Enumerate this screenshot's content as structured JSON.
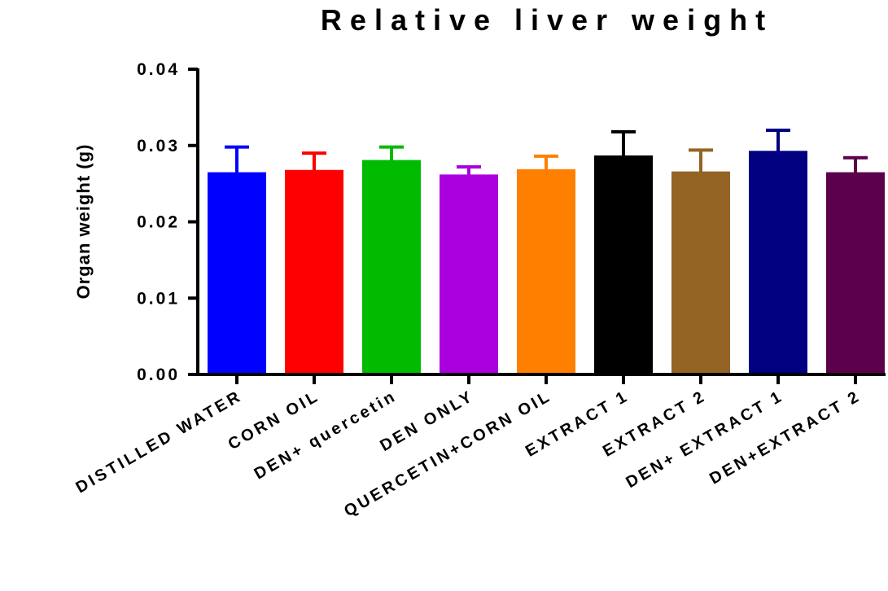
{
  "chart_data": {
    "type": "bar",
    "title": "Relative liver weight",
    "xlabel": "",
    "ylabel": "Organ weight (g)",
    "ylim": [
      0,
      0.04
    ],
    "yticks": [
      "0.00",
      "0.01",
      "0.02",
      "0.03",
      "0.04"
    ],
    "grid": false,
    "legend": "none",
    "categories": [
      "DISTILLED WATER",
      "CORN OIL",
      "DEN+ quercetin",
      "DEN ONLY",
      "QUERCETIN+CORN OIL",
      "EXTRACT 1",
      "EXTRACT 2",
      "DEN+ EXTRACT 1",
      "DEN+EXTRACT 2"
    ],
    "values": [
      0.0265,
      0.0268,
      0.0281,
      0.0262,
      0.0269,
      0.0287,
      0.0266,
      0.0293,
      0.0265
    ],
    "error_upper": [
      0.0298,
      0.029,
      0.0298,
      0.0272,
      0.0286,
      0.0318,
      0.0294,
      0.032,
      0.0284
    ],
    "colors": [
      "#0000ff",
      "#ff0000",
      "#00bb00",
      "#aa00dd",
      "#ff8000",
      "#000000",
      "#936423",
      "#000080",
      "#5c004c"
    ]
  }
}
